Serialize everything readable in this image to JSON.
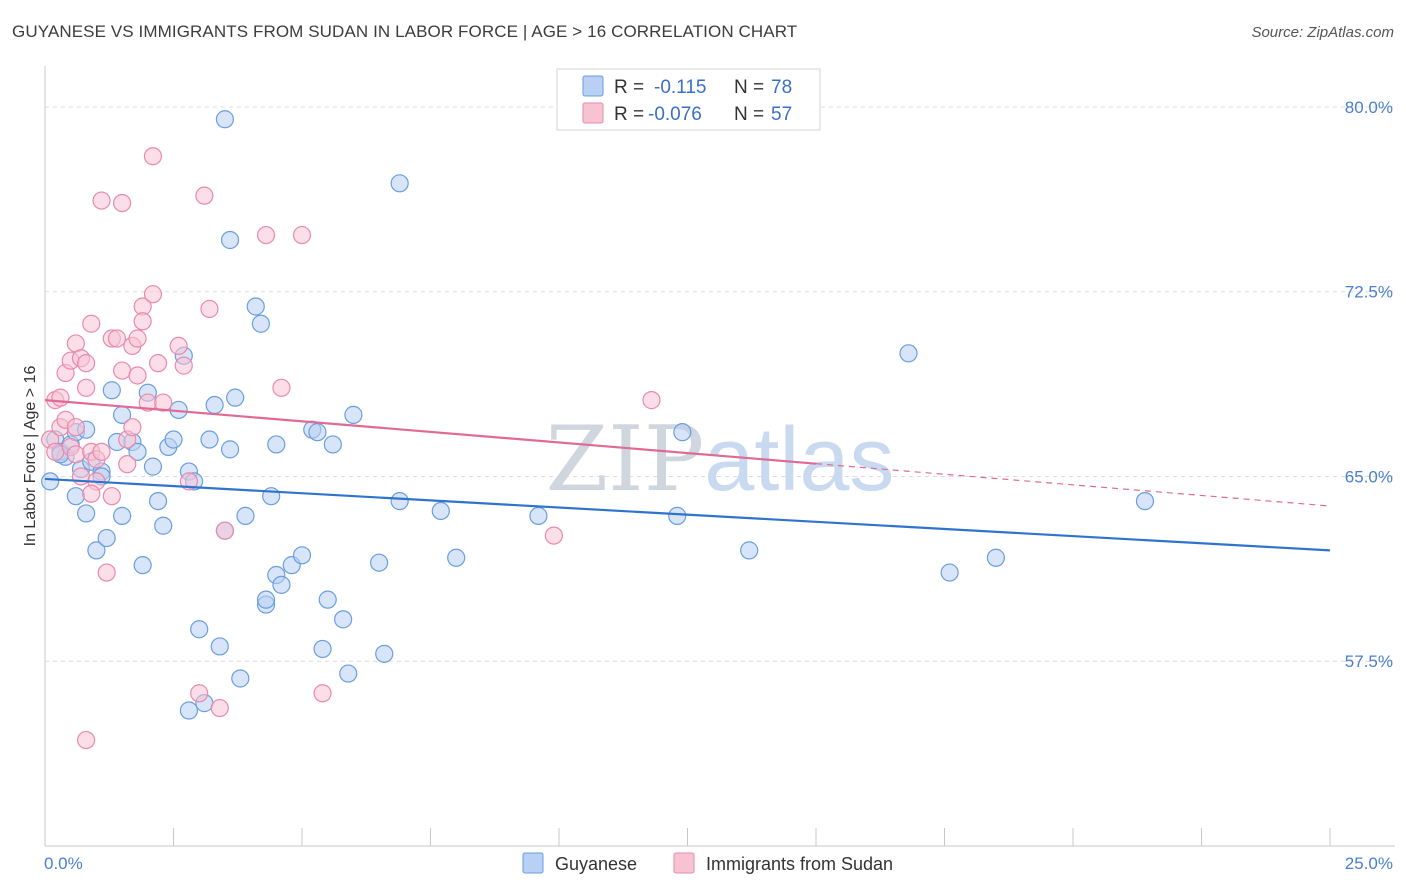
{
  "title": "GUYANESE VS IMMIGRANTS FROM SUDAN IN LABOR FORCE | AGE > 16 CORRELATION CHART",
  "source": "Source: ZipAtlas.com",
  "watermark": "ZIPatlas",
  "chart_data": {
    "type": "scatter",
    "title": "GUYANESE VS IMMIGRANTS FROM SUDAN IN LABOR FORCE | AGE > 16 CORRELATION CHART",
    "xlabel": "",
    "ylabel": "In Labor Force | Age > 16",
    "xlim": [
      0,
      25
    ],
    "ylim": [
      50,
      81.5
    ],
    "x_tick_labels": [
      "0.0%",
      "25.0%"
    ],
    "y_ticks": [
      57.5,
      65.0,
      72.5,
      80.0
    ],
    "y_tick_labels": [
      "57.5%",
      "65.0%",
      "72.5%",
      "80.0%"
    ],
    "grid": true,
    "legend_position": "top-center",
    "series": [
      {
        "name": "Guyanese",
        "color": "#6a9ee0",
        "fill": "#b8d0f3",
        "R": "-0.115",
        "N": "78",
        "trend": {
          "x": [
            0,
            25
          ],
          "y": [
            64.9,
            62.0
          ],
          "dashed_from": null
        },
        "points": [
          [
            0.2,
            66.5
          ],
          [
            0.3,
            66.0
          ],
          [
            0.4,
            65.8
          ],
          [
            0.5,
            66.3
          ],
          [
            0.6,
            66.8
          ],
          [
            0.6,
            64.2
          ],
          [
            0.7,
            65.3
          ],
          [
            0.8,
            66.9
          ],
          [
            0.8,
            63.5
          ],
          [
            0.9,
            65.6
          ],
          [
            1.0,
            62.0
          ],
          [
            1.1,
            65.2
          ],
          [
            1.2,
            62.5
          ],
          [
            1.3,
            68.5
          ],
          [
            1.4,
            66.4
          ],
          [
            1.5,
            63.4
          ],
          [
            1.5,
            67.5
          ],
          [
            1.7,
            66.4
          ],
          [
            1.8,
            66.0
          ],
          [
            1.9,
            61.4
          ],
          [
            2.0,
            68.4
          ],
          [
            2.1,
            65.4
          ],
          [
            2.2,
            64.0
          ],
          [
            2.3,
            63.0
          ],
          [
            2.4,
            66.2
          ],
          [
            2.5,
            66.5
          ],
          [
            2.6,
            67.7
          ],
          [
            2.7,
            69.9
          ],
          [
            2.8,
            65.2
          ],
          [
            2.8,
            55.5
          ],
          [
            2.9,
            64.8
          ],
          [
            3.0,
            58.8
          ],
          [
            3.1,
            55.8
          ],
          [
            3.2,
            66.5
          ],
          [
            3.3,
            67.9
          ],
          [
            3.4,
            58.1
          ],
          [
            3.5,
            62.8
          ],
          [
            3.6,
            66.1
          ],
          [
            3.7,
            68.2
          ],
          [
            3.5,
            79.5
          ],
          [
            3.6,
            74.6
          ],
          [
            3.8,
            56.8
          ],
          [
            3.9,
            63.4
          ],
          [
            4.1,
            71.9
          ],
          [
            4.2,
            71.2
          ],
          [
            4.3,
            59.8
          ],
          [
            4.3,
            60.0
          ],
          [
            4.4,
            64.2
          ],
          [
            4.5,
            66.3
          ],
          [
            4.5,
            61.0
          ],
          [
            4.6,
            60.6
          ],
          [
            4.8,
            61.4
          ],
          [
            5.0,
            61.8
          ],
          [
            5.2,
            66.9
          ],
          [
            5.3,
            66.8
          ],
          [
            5.4,
            58.0
          ],
          [
            5.5,
            60.0
          ],
          [
            5.6,
            66.3
          ],
          [
            5.8,
            59.2
          ],
          [
            5.9,
            57.0
          ],
          [
            6.0,
            67.5
          ],
          [
            6.5,
            61.5
          ],
          [
            6.6,
            57.8
          ],
          [
            6.9,
            76.9
          ],
          [
            6.9,
            64.0
          ],
          [
            7.7,
            63.6
          ],
          [
            8.0,
            61.7
          ],
          [
            9.6,
            63.4
          ],
          [
            12.3,
            63.4
          ],
          [
            12.4,
            66.8
          ],
          [
            13.7,
            62.0
          ],
          [
            16.8,
            70.0
          ],
          [
            17.6,
            61.1
          ],
          [
            18.5,
            61.7
          ],
          [
            21.4,
            64.0
          ],
          [
            0.1,
            64.8
          ],
          [
            0.3,
            65.9
          ],
          [
            1.1,
            65.0
          ]
        ]
      },
      {
        "name": "Immigrants from Sudan",
        "color": "#e98aab",
        "fill": "#f7c3d3",
        "R": "-0.076",
        "N": "57",
        "trend": {
          "x": [
            0,
            25
          ],
          "y": [
            68.1,
            63.8
          ],
          "dashed_from": 15
        },
        "points": [
          [
            0.1,
            66.5
          ],
          [
            0.2,
            68.1
          ],
          [
            0.2,
            66.0
          ],
          [
            0.3,
            67.0
          ],
          [
            0.3,
            68.2
          ],
          [
            0.4,
            69.2
          ],
          [
            0.4,
            67.3
          ],
          [
            0.5,
            66.2
          ],
          [
            0.5,
            69.7
          ],
          [
            0.6,
            70.4
          ],
          [
            0.6,
            67.0
          ],
          [
            0.6,
            65.9
          ],
          [
            0.7,
            65.0
          ],
          [
            0.7,
            69.8
          ],
          [
            0.8,
            68.6
          ],
          [
            0.8,
            69.6
          ],
          [
            0.8,
            54.3
          ],
          [
            0.9,
            71.2
          ],
          [
            0.9,
            66.0
          ],
          [
            1.0,
            65.7
          ],
          [
            1.0,
            64.8
          ],
          [
            1.1,
            66.0
          ],
          [
            1.1,
            76.2
          ],
          [
            1.2,
            61.1
          ],
          [
            1.3,
            70.6
          ],
          [
            1.3,
            64.2
          ],
          [
            1.4,
            70.6
          ],
          [
            1.5,
            76.1
          ],
          [
            1.5,
            69.3
          ],
          [
            1.6,
            65.5
          ],
          [
            1.6,
            66.5
          ],
          [
            1.7,
            67.0
          ],
          [
            1.7,
            70.3
          ],
          [
            1.8,
            69.1
          ],
          [
            1.8,
            70.6
          ],
          [
            1.9,
            71.9
          ],
          [
            1.9,
            71.3
          ],
          [
            2.0,
            68.0
          ],
          [
            2.1,
            78.0
          ],
          [
            2.1,
            72.4
          ],
          [
            2.2,
            69.6
          ],
          [
            2.3,
            68.0
          ],
          [
            2.6,
            70.3
          ],
          [
            2.7,
            69.5
          ],
          [
            2.8,
            64.8
          ],
          [
            3.0,
            56.2
          ],
          [
            3.1,
            76.4
          ],
          [
            3.2,
            71.8
          ],
          [
            3.4,
            55.6
          ],
          [
            3.5,
            62.8
          ],
          [
            4.3,
            74.8
          ],
          [
            4.6,
            68.6
          ],
          [
            5.0,
            74.8
          ],
          [
            5.4,
            56.2
          ],
          [
            9.9,
            62.6
          ],
          [
            11.8,
            68.1
          ],
          [
            0.9,
            64.3
          ]
        ]
      }
    ]
  },
  "legend": {
    "r_label": "R =",
    "n_label": "N ="
  },
  "bottom_legend": [
    "Guyanese",
    "Immigrants from Sudan"
  ]
}
